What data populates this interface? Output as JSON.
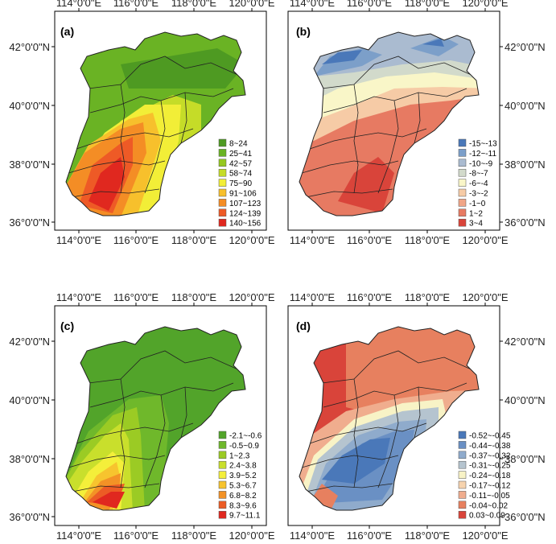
{
  "figure": {
    "lon_ticks": [
      "114°0'0\"E",
      "116°0'0\"E",
      "118°0'0\"E",
      "120°0'0\"E"
    ],
    "lat_ticks": [
      "42°0'0\"N",
      "40°0'0\"N",
      "38°0'0\"N",
      "36°0'0\"N"
    ],
    "panels": [
      {
        "label": "(a)",
        "legend": [
          {
            "label": "8~24",
            "color": "#4e9a22"
          },
          {
            "label": "25~41",
            "color": "#6ab324"
          },
          {
            "label": "42~57",
            "color": "#95c81f"
          },
          {
            "label": "58~74",
            "color": "#c5dc28"
          },
          {
            "label": "75~90",
            "color": "#f2ee37"
          },
          {
            "label": "91~106",
            "color": "#f7c02c"
          },
          {
            "label": "107~123",
            "color": "#f48d25"
          },
          {
            "label": "124~139",
            "color": "#ee5a26"
          },
          {
            "label": "140~156",
            "color": "#e0281f"
          }
        ]
      },
      {
        "label": "(b)",
        "legend": [
          {
            "label": "-15~-13",
            "color": "#4a78b9"
          },
          {
            "label": "-12~-11",
            "color": "#7c9fc9"
          },
          {
            "label": "-10~-9",
            "color": "#aabbd0"
          },
          {
            "label": "-8~-7",
            "color": "#d2dacb"
          },
          {
            "label": "-6~-4",
            "color": "#f9f6c8"
          },
          {
            "label": "-3~-2",
            "color": "#f6cba6"
          },
          {
            "label": "-1~0",
            "color": "#f0a587"
          },
          {
            "label": "1~2",
            "color": "#e77a62"
          },
          {
            "label": "3~4",
            "color": "#d9443a"
          }
        ]
      },
      {
        "label": "(c)",
        "legend": [
          {
            "label": "-2.1~-0.6",
            "color": "#52a42a"
          },
          {
            "label": "-0.5~0.9",
            "color": "#6fb82b"
          },
          {
            "label": "1~2.3",
            "color": "#9bcb24"
          },
          {
            "label": "2.4~3.8",
            "color": "#c9df2c"
          },
          {
            "label": "3.9~5.2",
            "color": "#f4ef3a"
          },
          {
            "label": "5.3~6.7",
            "color": "#f7c42e"
          },
          {
            "label": "6.8~8.2",
            "color": "#f39226"
          },
          {
            "label": "8.3~9.6",
            "color": "#ec5c25"
          },
          {
            "label": "9.7~11.1",
            "color": "#e0281f"
          }
        ]
      },
      {
        "label": "(d)",
        "legend": [
          {
            "label": "-0.52~-0.45",
            "color": "#4a78b9"
          },
          {
            "label": "-0.44~-0.38",
            "color": "#6a90c4"
          },
          {
            "label": "-0.37~-0.32",
            "color": "#8fabcc"
          },
          {
            "label": "-0.31~-0.25",
            "color": "#b5c4cf"
          },
          {
            "label": "-0.24~-0.18",
            "color": "#f8f3c6"
          },
          {
            "label": "-0.17~-0.12",
            "color": "#f6d3ae"
          },
          {
            "label": "-0.11~-0.05",
            "color": "#f0ad8e"
          },
          {
            "label": "-0.04~0.02",
            "color": "#e7805f"
          },
          {
            "label": "0.03~0.09",
            "color": "#d9443a"
          }
        ]
      }
    ]
  }
}
